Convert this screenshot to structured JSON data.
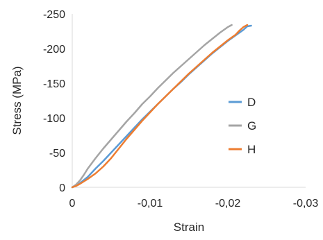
{
  "chart_data": {
    "type": "line",
    "title": "",
    "xlabel": "Strain",
    "ylabel": "Stress (MPa)",
    "xlim": [
      0,
      -0.03
    ],
    "ylim": [
      0,
      -250
    ],
    "x_ticks": [
      0,
      -0.01,
      -0.02,
      -0.03
    ],
    "x_tick_labels": [
      "0",
      "-0,01",
      "-0,02",
      "-0,03"
    ],
    "y_ticks": [
      0,
      -50,
      -100,
      -150,
      -200,
      -250
    ],
    "y_tick_labels": [
      "0",
      "-50",
      "-100",
      "-150",
      "-200",
      "-250"
    ],
    "grid": false,
    "legend_position": "right",
    "series": [
      {
        "name": "D",
        "color": "#5B9BD5",
        "x": [
          0,
          -0.0005,
          -0.001,
          -0.002,
          -0.003,
          -0.004,
          -0.005,
          -0.006,
          -0.007,
          -0.008,
          -0.009,
          -0.01,
          -0.011,
          -0.012,
          -0.013,
          -0.014,
          -0.015,
          -0.016,
          -0.017,
          -0.018,
          -0.019,
          -0.02,
          -0.021,
          -0.022,
          -0.0225,
          -0.023
        ],
        "y": [
          0,
          -2,
          -6,
          -15,
          -27,
          -38,
          -50,
          -62,
          -74,
          -86,
          -98,
          -109,
          -120,
          -131,
          -142,
          -152,
          -163,
          -173,
          -183,
          -193,
          -202,
          -211,
          -219,
          -227,
          -232,
          -233
        ]
      },
      {
        "name": "G",
        "color": "#A5A5A5",
        "x": [
          0,
          -0.0005,
          -0.001,
          -0.0015,
          -0.002,
          -0.003,
          -0.004,
          -0.005,
          -0.006,
          -0.007,
          -0.008,
          -0.009,
          -0.01,
          -0.011,
          -0.012,
          -0.013,
          -0.014,
          -0.015,
          -0.016,
          -0.017,
          -0.018,
          -0.019,
          -0.02,
          -0.0205
        ],
        "y": [
          0,
          -4,
          -10,
          -18,
          -27,
          -42,
          -56,
          -69,
          -82,
          -95,
          -107,
          -120,
          -131,
          -143,
          -154,
          -165,
          -175,
          -185,
          -195,
          -205,
          -214,
          -223,
          -231,
          -234
        ]
      },
      {
        "name": "H",
        "color": "#ED7D31",
        "x": [
          0,
          -0.0005,
          -0.001,
          -0.002,
          -0.003,
          -0.004,
          -0.005,
          -0.006,
          -0.007,
          -0.008,
          -0.009,
          -0.01,
          -0.011,
          -0.012,
          -0.013,
          -0.014,
          -0.015,
          -0.016,
          -0.017,
          -0.018,
          -0.019,
          -0.02,
          -0.021,
          -0.0215,
          -0.022,
          -0.0225
        ],
        "y": [
          0,
          -2,
          -5,
          -12,
          -20,
          -30,
          -42,
          -56,
          -70,
          -83,
          -96,
          -108,
          -120,
          -131,
          -142,
          -153,
          -164,
          -174,
          -184,
          -194,
          -203,
          -212,
          -220,
          -226,
          -231,
          -234
        ]
      }
    ]
  }
}
